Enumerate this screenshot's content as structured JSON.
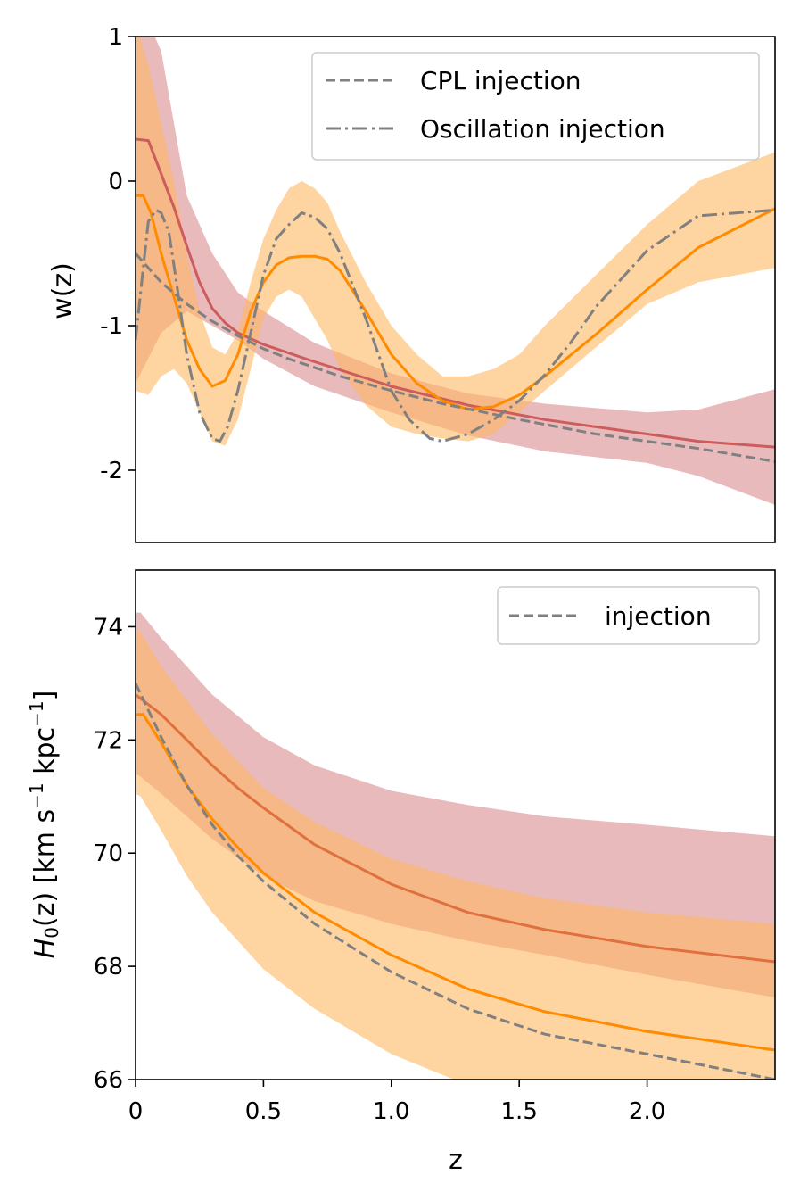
{
  "chart_data": [
    {
      "type": "line",
      "xlim": [
        0,
        2.5
      ],
      "ylim": [
        -2.5,
        1
      ],
      "xlabel": "",
      "ylabel": "w(z)",
      "yticks": [
        {
          "value": 1,
          "label": "1"
        },
        {
          "value": 0,
          "label": "0"
        },
        {
          "value": -1,
          "label": "-1"
        },
        {
          "value": -2,
          "label": "-2"
        }
      ],
      "show_xticklabels": false,
      "grid": false,
      "legend": {
        "placement": "top-right",
        "entries": [
          {
            "label": "CPL injection",
            "style": "dashed",
            "color": "#808080"
          },
          {
            "label": "Oscillation injection",
            "style": "dashdot",
            "color": "#808080"
          }
        ]
      },
      "bands": [
        {
          "color": "#d98c8f",
          "opacity": 0.6,
          "x": [
            0,
            0.1,
            0.2,
            0.3,
            0.4,
            0.5,
            0.7,
            1.0,
            1.3,
            1.6,
            2.0,
            2.2,
            2.5
          ],
          "upper": [
            1.3,
            0.9,
            -0.1,
            -0.5,
            -0.77,
            -0.9,
            -1.12,
            -1.33,
            -1.47,
            -1.54,
            -1.6,
            -1.58,
            -1.44
          ],
          "lower": [
            -1.4,
            -1.05,
            -0.9,
            -1.0,
            -1.1,
            -1.23,
            -1.42,
            -1.6,
            -1.76,
            -1.87,
            -1.95,
            -2.04,
            -2.24
          ]
        },
        {
          "color": "#fdb863",
          "opacity": 0.6,
          "x": [
            0,
            0.05,
            0.1,
            0.15,
            0.2,
            0.25,
            0.3,
            0.35,
            0.4,
            0.45,
            0.5,
            0.55,
            0.6,
            0.65,
            0.7,
            0.75,
            0.8,
            0.9,
            1.0,
            1.1,
            1.2,
            1.3,
            1.4,
            1.5,
            1.6,
            1.8,
            2.0,
            2.2,
            2.5
          ],
          "upper": [
            1.1,
            0.8,
            0.4,
            0.0,
            -0.5,
            -0.9,
            -1.15,
            -1.2,
            -1.05,
            -0.7,
            -0.4,
            -0.2,
            -0.05,
            0.0,
            -0.05,
            -0.15,
            -0.35,
            -0.7,
            -1.0,
            -1.2,
            -1.35,
            -1.35,
            -1.3,
            -1.2,
            -1.0,
            -0.65,
            -0.3,
            0.0,
            0.2
          ],
          "lower": [
            -1.45,
            -1.48,
            -1.35,
            -1.3,
            -1.4,
            -1.6,
            -1.8,
            -1.83,
            -1.65,
            -1.3,
            -0.95,
            -0.8,
            -0.75,
            -0.8,
            -0.95,
            -1.1,
            -1.3,
            -1.55,
            -1.7,
            -1.75,
            -1.78,
            -1.8,
            -1.75,
            -1.6,
            -1.45,
            -1.15,
            -0.85,
            -0.7,
            -0.6
          ]
        }
      ],
      "series": [
        {
          "color": "#cd5c5c",
          "style": "solid",
          "x": [
            0,
            0.05,
            0.1,
            0.15,
            0.2,
            0.25,
            0.3,
            0.35,
            0.4,
            0.5,
            0.7,
            1.0,
            1.3,
            1.6,
            2.0,
            2.2,
            2.5
          ],
          "y": [
            0.29,
            0.28,
            0.05,
            -0.18,
            -0.45,
            -0.7,
            -0.88,
            -0.98,
            -1.05,
            -1.13,
            -1.25,
            -1.42,
            -1.55,
            -1.65,
            -1.75,
            -1.8,
            -1.84
          ]
        },
        {
          "color": "#ff8c00",
          "style": "solid",
          "x": [
            0,
            0.03,
            0.06,
            0.1,
            0.15,
            0.2,
            0.25,
            0.3,
            0.35,
            0.4,
            0.45,
            0.5,
            0.55,
            0.6,
            0.65,
            0.7,
            0.75,
            0.8,
            0.9,
            1.0,
            1.1,
            1.2,
            1.3,
            1.4,
            1.5,
            1.6,
            1.8,
            2.0,
            2.2,
            2.5
          ],
          "y": [
            -0.1,
            -0.1,
            -0.22,
            -0.5,
            -0.8,
            -1.1,
            -1.3,
            -1.42,
            -1.38,
            -1.2,
            -0.9,
            -0.7,
            -0.58,
            -0.53,
            -0.52,
            -0.52,
            -0.54,
            -0.62,
            -0.9,
            -1.2,
            -1.4,
            -1.52,
            -1.58,
            -1.56,
            -1.48,
            -1.35,
            -1.06,
            -0.75,
            -0.46,
            -0.19
          ]
        },
        {
          "color": "#808080",
          "style": "dashed",
          "name": "CPL injection",
          "x": [
            0,
            0.1,
            0.2,
            0.3,
            0.4,
            0.5,
            0.6,
            0.8,
            1.0,
            1.2,
            1.5,
            1.8,
            2.0,
            2.2,
            2.5
          ],
          "y": [
            -0.5,
            -0.7,
            -0.85,
            -0.97,
            -1.07,
            -1.16,
            -1.23,
            -1.35,
            -1.45,
            -1.54,
            -1.65,
            -1.75,
            -1.8,
            -1.85,
            -1.94
          ]
        },
        {
          "color": "#808080",
          "style": "dashdot",
          "name": "Oscillation injection",
          "x": [
            0,
            0.03,
            0.05,
            0.08,
            0.1,
            0.13,
            0.16,
            0.2,
            0.25,
            0.3,
            0.33,
            0.36,
            0.4,
            0.45,
            0.5,
            0.55,
            0.6,
            0.65,
            0.7,
            0.75,
            0.8,
            0.9,
            1.0,
            1.07,
            1.15,
            1.2,
            1.3,
            1.4,
            1.5,
            1.6,
            1.7,
            1.8,
            2.0,
            2.2,
            2.5
          ],
          "y": [
            -1.1,
            -0.6,
            -0.28,
            -0.2,
            -0.22,
            -0.35,
            -0.7,
            -1.2,
            -1.6,
            -1.78,
            -1.8,
            -1.7,
            -1.45,
            -1.05,
            -0.65,
            -0.4,
            -0.3,
            -0.22,
            -0.25,
            -0.33,
            -0.5,
            -0.95,
            -1.45,
            -1.65,
            -1.78,
            -1.8,
            -1.75,
            -1.65,
            -1.52,
            -1.34,
            -1.12,
            -0.87,
            -0.48,
            -0.24,
            -0.2
          ]
        }
      ]
    },
    {
      "type": "line",
      "xlim": [
        0,
        2.5
      ],
      "ylim": [
        66,
        75
      ],
      "xlabel": "z",
      "ylabel": "H",
      "ylabel_sub": "0",
      "ylabel_rest": "(z) [km s",
      "ylabel_sup1": "−1",
      "ylabel_mid": " kpc",
      "ylabel_sup2": "−1",
      "ylabel_end": "]",
      "xticks": [
        {
          "value": 0,
          "label": "0"
        },
        {
          "value": 0.5,
          "label": "0.5"
        },
        {
          "value": 1.0,
          "label": "1.0"
        },
        {
          "value": 1.5,
          "label": "1.5"
        },
        {
          "value": 2.0,
          "label": "2.0"
        }
      ],
      "yticks": [
        {
          "value": 74,
          "label": "74"
        },
        {
          "value": 72,
          "label": "72"
        },
        {
          "value": 70,
          "label": "70"
        },
        {
          "value": 68,
          "label": "68"
        },
        {
          "value": 66,
          "label": "66"
        }
      ],
      "grid": false,
      "legend": {
        "placement": "top-right",
        "entries": [
          {
            "label": "injection",
            "style": "dashed",
            "color": "#808080"
          }
        ]
      },
      "bands": [
        {
          "color": "#d98c8f",
          "opacity": 0.6,
          "x": [
            0,
            0.02,
            0.1,
            0.2,
            0.3,
            0.5,
            0.7,
            1.0,
            1.3,
            1.6,
            2.0,
            2.5
          ],
          "upper": [
            74.25,
            74.25,
            73.8,
            73.3,
            72.8,
            72.05,
            71.55,
            71.1,
            70.85,
            70.65,
            70.5,
            70.3
          ],
          "lower": [
            71.4,
            71.35,
            71.05,
            70.65,
            70.25,
            69.6,
            69.15,
            68.75,
            68.45,
            68.2,
            67.85,
            67.45
          ]
        },
        {
          "color": "#fdb863",
          "opacity": 0.6,
          "x": [
            0,
            0.02,
            0.1,
            0.2,
            0.3,
            0.5,
            0.7,
            1.0,
            1.3,
            1.6,
            2.0,
            2.5
          ],
          "upper": [
            73.95,
            73.9,
            73.3,
            72.7,
            72.1,
            71.15,
            70.55,
            69.9,
            69.5,
            69.2,
            68.95,
            68.75
          ],
          "lower": [
            71.05,
            71.0,
            70.4,
            69.6,
            68.95,
            67.95,
            67.25,
            66.45,
            65.9,
            65.5,
            65.05,
            64.6
          ]
        }
      ],
      "series": [
        {
          "color": "#e0703f",
          "style": "solid",
          "x": [
            0,
            0.1,
            0.2,
            0.3,
            0.4,
            0.5,
            0.7,
            1.0,
            1.3,
            1.6,
            2.0,
            2.5
          ],
          "y": [
            72.8,
            72.45,
            72.0,
            71.55,
            71.15,
            70.8,
            70.15,
            69.45,
            68.95,
            68.65,
            68.35,
            68.08
          ]
        },
        {
          "color": "#ff8c00",
          "style": "solid",
          "x": [
            0,
            0.03,
            0.1,
            0.2,
            0.3,
            0.4,
            0.5,
            0.7,
            1.0,
            1.3,
            1.6,
            2.0,
            2.5
          ],
          "y": [
            72.45,
            72.45,
            71.95,
            71.2,
            70.6,
            70.1,
            69.65,
            68.95,
            68.2,
            67.6,
            67.2,
            66.85,
            66.52
          ]
        },
        {
          "color": "#808080",
          "style": "dashed",
          "name": "injection",
          "x": [
            0,
            0.1,
            0.2,
            0.3,
            0.4,
            0.5,
            0.7,
            1.0,
            1.3,
            1.6,
            2.0,
            2.5
          ],
          "y": [
            73.0,
            72.05,
            71.2,
            70.5,
            69.95,
            69.5,
            68.75,
            67.9,
            67.25,
            66.8,
            66.45,
            66.0
          ]
        }
      ]
    }
  ]
}
